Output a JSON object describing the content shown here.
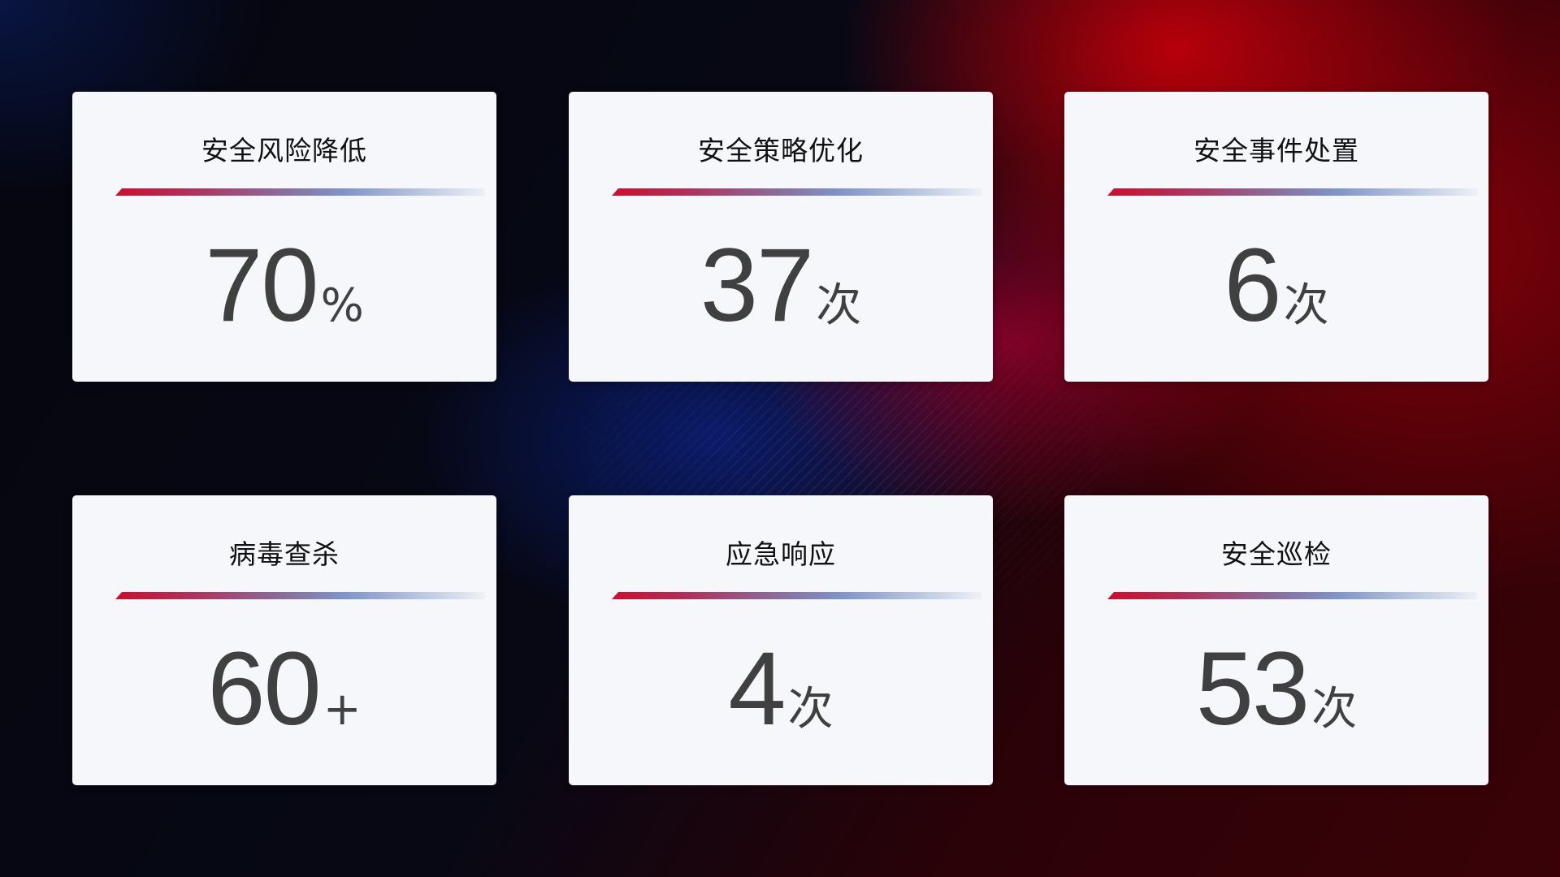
{
  "cards": [
    {
      "title": "安全风险降低",
      "value": "70",
      "unit": "%"
    },
    {
      "title": "安全策略优化",
      "value": "37",
      "unit": "次"
    },
    {
      "title": "安全事件处置",
      "value": "6",
      "unit": "次"
    },
    {
      "title": "病毒查杀",
      "value": "60",
      "unit": "+"
    },
    {
      "title": "应急响应",
      "value": "4",
      "unit": "次"
    },
    {
      "title": "安全巡检",
      "value": "53",
      "unit": "次"
    }
  ],
  "colors": {
    "accent_red": "#c8102e",
    "accent_blue": "#7f94c8",
    "card_bg": "#f5f7fb",
    "value_text": "#404040"
  }
}
